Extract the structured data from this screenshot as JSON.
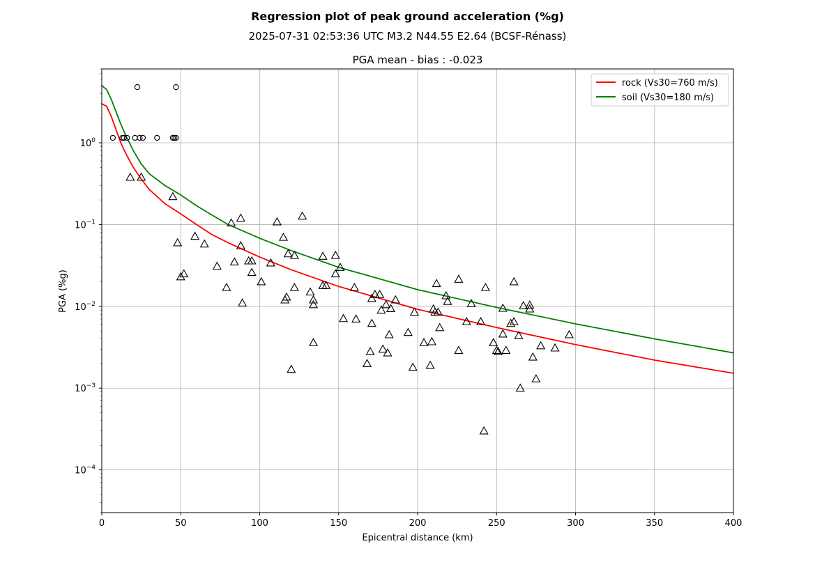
{
  "figure": {
    "suptitle": "Regression plot of peak ground acceleration (%g)",
    "event": "2025-07-31 02:53:36 UTC M3.2 N44.55 E2.64 (BCSF-Rénass)"
  },
  "chart_data": {
    "type": "scatter",
    "title": "PGA mean - bias : -0.023",
    "xlabel": "Epicentral distance (km)",
    "ylabel": "PGA (%g)",
    "xscale": "linear",
    "yscale": "log",
    "xlim": [
      0,
      400
    ],
    "ylim": [
      3e-05,
      8
    ],
    "xticks": [
      0,
      50,
      100,
      150,
      200,
      250,
      300,
      350,
      400
    ],
    "yticks": [
      0.0001,
      0.001,
      0.01,
      0.1,
      1
    ],
    "ytick_labels": [
      {
        "base": "10",
        "exp": "−4"
      },
      {
        "base": "10",
        "exp": "−3"
      },
      {
        "base": "10",
        "exp": "−2"
      },
      {
        "base": "10",
        "exp": "−1"
      },
      {
        "base": "10",
        "exp": "0"
      }
    ],
    "grid": true,
    "legend_position": "top-right",
    "lines": [
      {
        "name": "rock (Vs30=760 m/s)",
        "color": "#ff0000",
        "x": [
          0,
          3,
          6,
          9,
          12,
          15,
          20,
          25,
          30,
          40,
          50,
          60,
          70,
          80,
          100,
          120,
          150,
          200,
          250,
          300,
          350,
          400
        ],
        "y": [
          3.0,
          2.8,
          2.1,
          1.45,
          1.0,
          0.75,
          0.5,
          0.36,
          0.27,
          0.18,
          0.135,
          0.1,
          0.075,
          0.06,
          0.04,
          0.028,
          0.0175,
          0.0092,
          0.0055,
          0.0034,
          0.0022,
          0.00152
        ]
      },
      {
        "name": "soil (Vs30=180 m/s)",
        "color": "#008000",
        "x": [
          0,
          3,
          6,
          9,
          12,
          15,
          20,
          25,
          30,
          40,
          50,
          60,
          70,
          80,
          100,
          120,
          150,
          200,
          250,
          300,
          350,
          400
        ],
        "y": [
          5.0,
          4.5,
          3.4,
          2.4,
          1.7,
          1.25,
          0.8,
          0.55,
          0.42,
          0.3,
          0.23,
          0.17,
          0.13,
          0.1,
          0.068,
          0.048,
          0.03,
          0.016,
          0.0097,
          0.0061,
          0.004,
          0.0027
        ]
      }
    ],
    "series": [
      {
        "name": "circle stations",
        "marker": "circle",
        "points": [
          [
            7,
            1.15
          ],
          [
            13,
            1.15
          ],
          [
            14,
            1.15
          ],
          [
            16,
            1.15
          ],
          [
            21,
            1.15
          ],
          [
            24,
            1.15
          ],
          [
            26,
            1.15
          ],
          [
            35,
            1.15
          ],
          [
            45,
            1.15
          ],
          [
            46,
            1.15
          ],
          [
            47,
            1.15
          ],
          [
            22.5,
            4.8
          ],
          [
            47,
            4.8
          ]
        ]
      },
      {
        "name": "triangle stations",
        "marker": "triangle",
        "points": [
          [
            18,
            0.38
          ],
          [
            25,
            0.38
          ],
          [
            45,
            0.22
          ],
          [
            48,
            0.06
          ],
          [
            50,
            0.023
          ],
          [
            52,
            0.025
          ],
          [
            59,
            0.072
          ],
          [
            65,
            0.058
          ],
          [
            73,
            0.031
          ],
          [
            79,
            0.017
          ],
          [
            82,
            0.105
          ],
          [
            84,
            0.035
          ],
          [
            88,
            0.055
          ],
          [
            88,
            0.12
          ],
          [
            89,
            0.011
          ],
          [
            93,
            0.036
          ],
          [
            95,
            0.036
          ],
          [
            95,
            0.026
          ],
          [
            101,
            0.02
          ],
          [
            107,
            0.034
          ],
          [
            111,
            0.108
          ],
          [
            115,
            0.07
          ],
          [
            116,
            0.012
          ],
          [
            117,
            0.013
          ],
          [
            118,
            0.044
          ],
          [
            120,
            0.0017
          ],
          [
            122,
            0.042
          ],
          [
            122,
            0.017
          ],
          [
            127,
            0.127
          ],
          [
            132,
            0.015
          ],
          [
            134,
            0.012
          ],
          [
            134,
            0.0105
          ],
          [
            134,
            0.0036
          ],
          [
            140,
            0.041
          ],
          [
            140,
            0.018
          ],
          [
            142,
            0.018
          ],
          [
            148,
            0.042
          ],
          [
            148,
            0.025
          ],
          [
            151,
            0.03
          ],
          [
            153,
            0.0071
          ],
          [
            160,
            0.017
          ],
          [
            161,
            0.007
          ],
          [
            168,
            0.002
          ],
          [
            170,
            0.0028
          ],
          [
            171,
            0.0125
          ],
          [
            171,
            0.0062
          ],
          [
            173,
            0.014
          ],
          [
            176,
            0.014
          ],
          [
            177,
            0.009
          ],
          [
            178,
            0.003
          ],
          [
            180,
            0.0105
          ],
          [
            181,
            0.0027
          ],
          [
            182,
            0.0045
          ],
          [
            183,
            0.0094
          ],
          [
            186,
            0.012
          ],
          [
            194,
            0.0048
          ],
          [
            197,
            0.0018
          ],
          [
            198,
            0.0085
          ],
          [
            204,
            0.0036
          ],
          [
            208,
            0.0019
          ],
          [
            209,
            0.0037
          ],
          [
            210,
            0.0093
          ],
          [
            211,
            0.0085
          ],
          [
            212,
            0.019
          ],
          [
            213,
            0.0085
          ],
          [
            214,
            0.0055
          ],
          [
            218,
            0.0135
          ],
          [
            219,
            0.0115
          ],
          [
            226,
            0.0215
          ],
          [
            226,
            0.0029
          ],
          [
            231,
            0.0065
          ],
          [
            234,
            0.0108
          ],
          [
            240,
            0.0065
          ],
          [
            242,
            0.0003
          ],
          [
            243,
            0.017
          ],
          [
            248,
            0.0036
          ],
          [
            250,
            0.0029
          ],
          [
            251,
            0.0028
          ],
          [
            254,
            0.0095
          ],
          [
            254,
            0.0046
          ],
          [
            256,
            0.0029
          ],
          [
            259,
            0.0062
          ],
          [
            261,
            0.02
          ],
          [
            261,
            0.0065
          ],
          [
            264,
            0.0044
          ],
          [
            265,
            0.001
          ],
          [
            267,
            0.0102
          ],
          [
            271,
            0.0104
          ],
          [
            271,
            0.0093
          ],
          [
            273,
            0.0024
          ],
          [
            275,
            0.0013
          ],
          [
            278,
            0.0033
          ],
          [
            287,
            0.0031
          ],
          [
            296,
            0.0045
          ]
        ]
      }
    ]
  }
}
